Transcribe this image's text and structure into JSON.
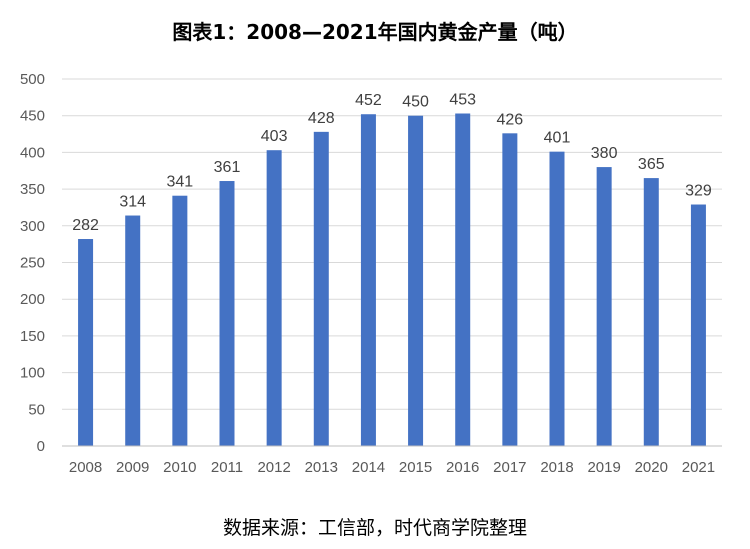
{
  "chart_data": {
    "type": "bar",
    "title": "图表1：2008—2021年国内黄金产量（吨）",
    "categories": [
      "2008",
      "2009",
      "2010",
      "2011",
      "2012",
      "2013",
      "2014",
      "2015",
      "2016",
      "2017",
      "2018",
      "2019",
      "2020",
      "2021"
    ],
    "values": [
      282,
      314,
      341,
      361,
      403,
      428,
      452,
      450,
      453,
      426,
      401,
      380,
      365,
      329
    ],
    "ylim": [
      0,
      500
    ],
    "yticks": [
      0,
      50,
      100,
      150,
      200,
      250,
      300,
      350,
      400,
      450,
      500
    ],
    "xlabel": "",
    "ylabel": "",
    "grid": true,
    "bar_color": "#4472C4",
    "data_labels": true,
    "legend": "none"
  },
  "source_note": "数据来源：工信部，时代商学院整理"
}
